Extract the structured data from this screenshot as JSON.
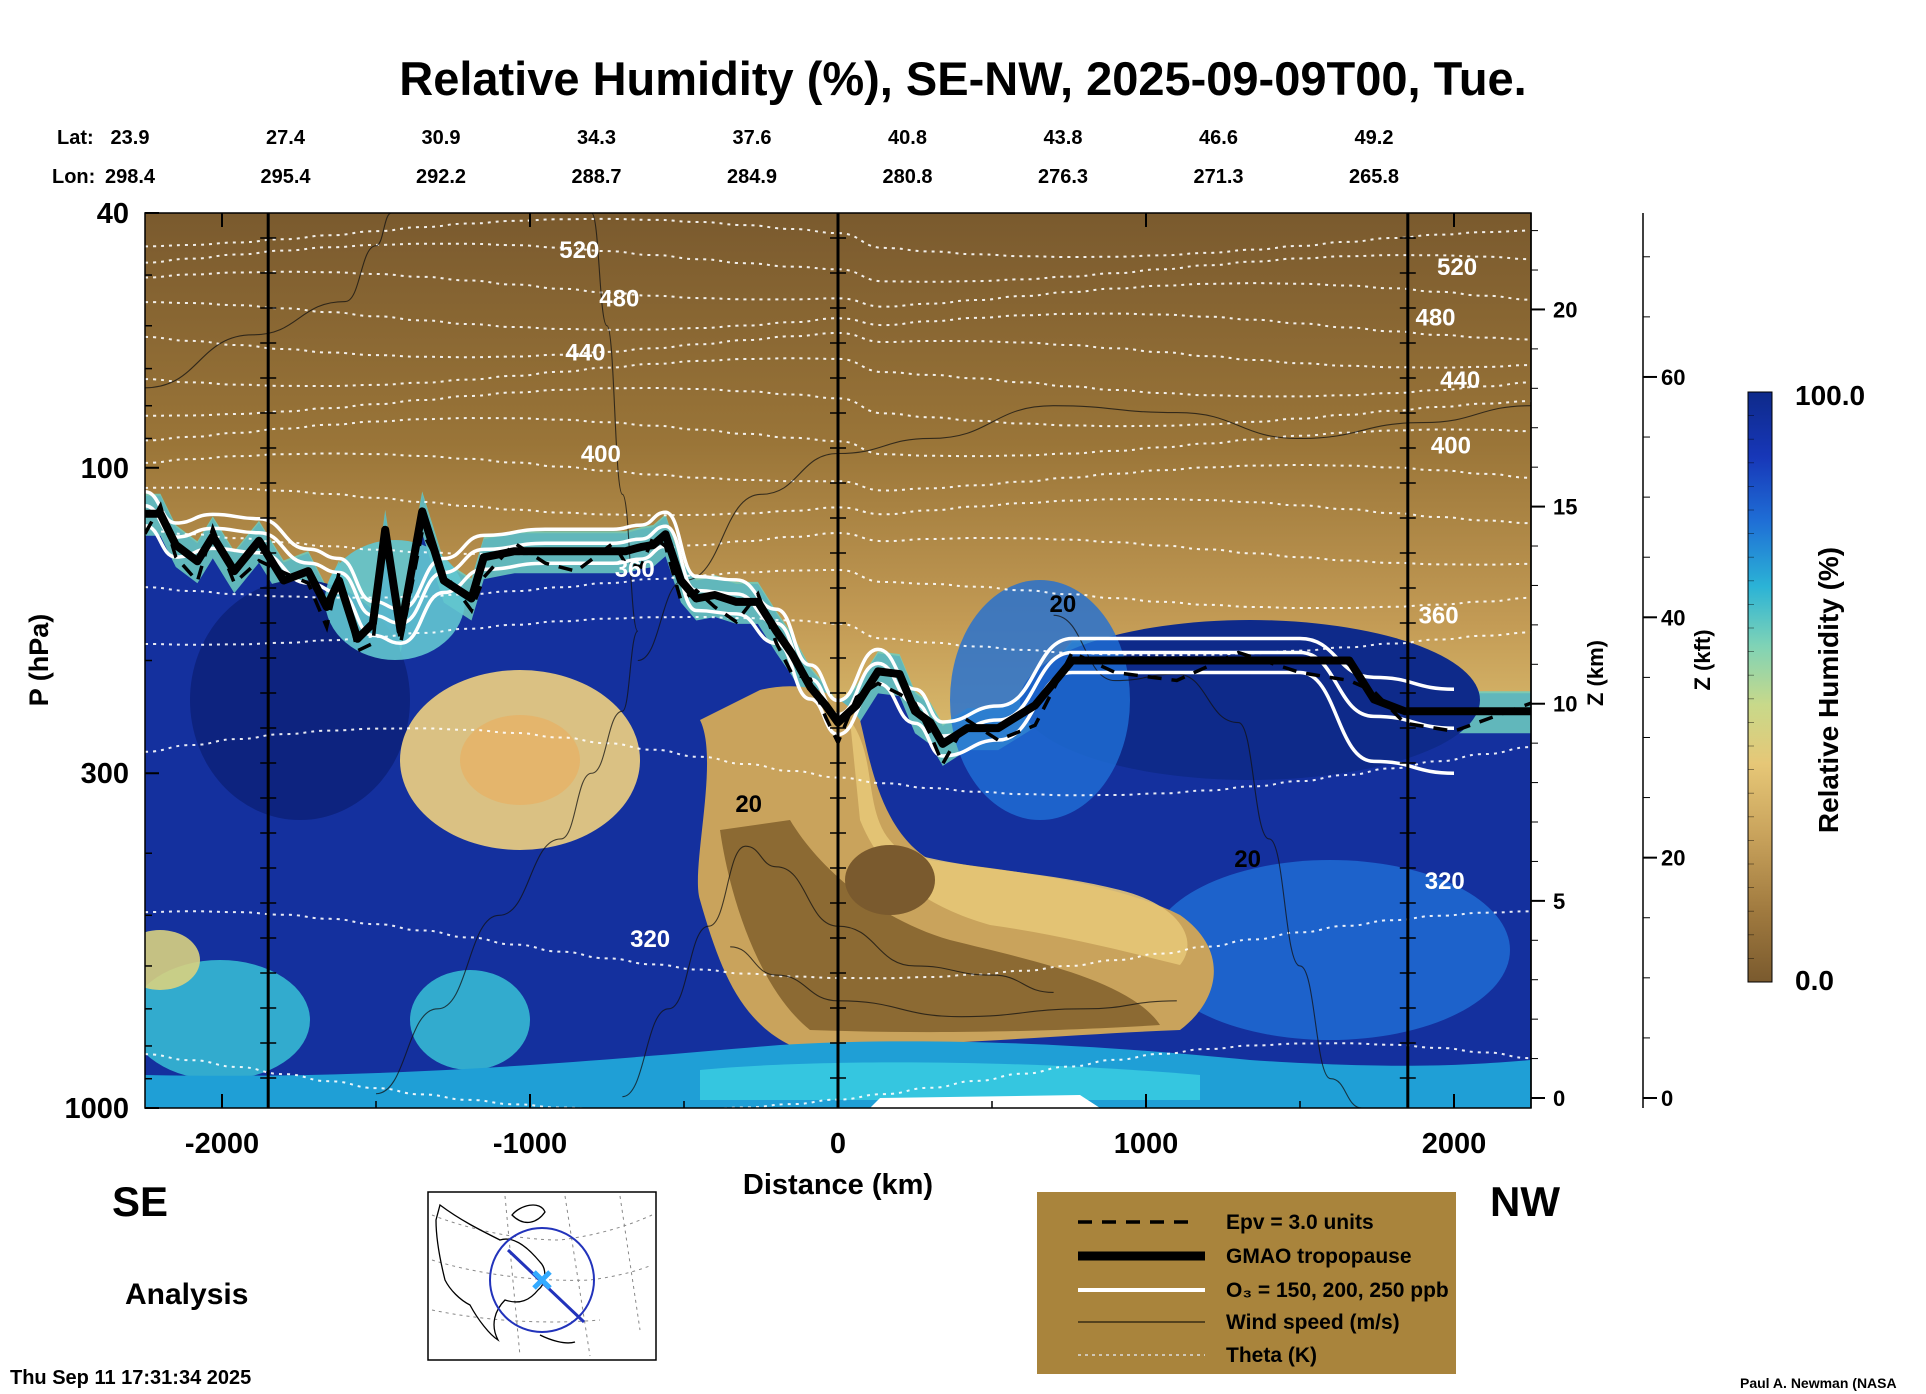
{
  "chart_data": {
    "type": "heatmap",
    "title": "Relative Humidity (%), SE-NW, 2025-09-09T00, Tue.",
    "xlabel": "Distance (km)",
    "ylabel": "P (hPa)",
    "right_label_z_km": "Z (km)",
    "right_label_z_kft": "Z (kft)",
    "xlim": [
      -2250,
      2250
    ],
    "ylim_hpa": [
      1000,
      40
    ],
    "x_ticks": [
      -2000,
      -1000,
      0,
      1000,
      2000
    ],
    "x_tick_labels": [
      "-2000",
      "-1000",
      "0",
      "1000",
      "2000"
    ],
    "y_ticks": [
      40,
      100,
      300,
      1000
    ],
    "y_tick_labels": [
      "40",
      "100",
      "300",
      "1000"
    ],
    "z_km_ticks": [
      0,
      5,
      10,
      15,
      20
    ],
    "z_km_labels": [
      "0",
      "5",
      "10",
      "15",
      "20"
    ],
    "z_kft_ticks": [
      0,
      20,
      40,
      60
    ],
    "z_kft_labels": [
      "0",
      "20",
      "40",
      "60"
    ],
    "lat_label": "Lat:",
    "lon_label": "Lon:",
    "lat_values": [
      "23.9",
      "27.4",
      "30.9",
      "34.3",
      "37.6",
      "40.8",
      "43.8",
      "46.6",
      "49.2"
    ],
    "lon_values": [
      "298.4",
      "295.4",
      "292.2",
      "288.7",
      "284.9",
      "280.8",
      "276.3",
      "271.3",
      "265.8"
    ],
    "lat_lon_distance_km": [
      -2250,
      -1750,
      -1250,
      -750,
      -250,
      250,
      750,
      1250,
      1750
    ],
    "vertical_markers_km": [
      -1850,
      0,
      1850
    ],
    "colorbar": {
      "label": "Relative Humidity (%)",
      "min": 0.0,
      "max": 100.0,
      "min_label": "0.0",
      "max_label": "100.0",
      "colors": [
        "#7a5a2e",
        "#a07a3f",
        "#c9a35c",
        "#e6c777",
        "#c8d98a",
        "#7fd3b6",
        "#2bb3d6",
        "#1f6fd6",
        "#1737b8",
        "#0e2a8a"
      ]
    },
    "theta_contours_K": [
      320,
      360,
      400,
      440,
      480,
      520
    ],
    "theta_labels": [
      {
        "text": "520",
        "x_km": -840,
        "p_hpa": 47
      },
      {
        "text": "480",
        "x_km": -710,
        "p_hpa": 56
      },
      {
        "text": "440",
        "x_km": -820,
        "p_hpa": 68
      },
      {
        "text": "400",
        "x_km": -770,
        "p_hpa": 98
      },
      {
        "text": "360",
        "x_km": -660,
        "p_hpa": 148
      },
      {
        "text": "320",
        "x_km": -610,
        "p_hpa": 560
      },
      {
        "text": "520",
        "x_km": 2010,
        "p_hpa": 50
      },
      {
        "text": "480",
        "x_km": 1940,
        "p_hpa": 60
      },
      {
        "text": "440",
        "x_km": 2020,
        "p_hpa": 75
      },
      {
        "text": "400",
        "x_km": 1990,
        "p_hpa": 95
      },
      {
        "text": "360",
        "x_km": 1950,
        "p_hpa": 175
      },
      {
        "text": "320",
        "x_km": 1970,
        "p_hpa": 455
      }
    ],
    "wind_labels": [
      {
        "text": "20",
        "x_km": 730,
        "p_hpa": 168
      },
      {
        "text": "20",
        "x_km": -290,
        "p_hpa": 345
      },
      {
        "text": "20",
        "x_km": 1330,
        "p_hpa": 420
      }
    ],
    "tropopause_hpa": [
      [
        -2250,
        118
      ],
      [
        -2200,
        118
      ],
      [
        -2150,
        132
      ],
      [
        -2080,
        140
      ],
      [
        -2030,
        128
      ],
      [
        -1960,
        145
      ],
      [
        -1880,
        130
      ],
      [
        -1800,
        150
      ],
      [
        -1720,
        145
      ],
      [
        -1660,
        165
      ],
      [
        -1620,
        150
      ],
      [
        -1560,
        185
      ],
      [
        -1510,
        175
      ],
      [
        -1470,
        125
      ],
      [
        -1420,
        180
      ],
      [
        -1350,
        117
      ],
      [
        -1280,
        150
      ],
      [
        -1190,
        160
      ],
      [
        -1150,
        138
      ],
      [
        -1050,
        135
      ],
      [
        -950,
        135
      ],
      [
        -850,
        135
      ],
      [
        -730,
        135
      ],
      [
        -690,
        135
      ],
      [
        -640,
        133
      ],
      [
        -600,
        132
      ],
      [
        -560,
        127
      ],
      [
        -510,
        150
      ],
      [
        -460,
        160
      ],
      [
        -400,
        158
      ],
      [
        -330,
        162
      ],
      [
        -260,
        162
      ],
      [
        -200,
        180
      ],
      [
        -150,
        195
      ],
      [
        -90,
        220
      ],
      [
        -40,
        235
      ],
      [
        0,
        250
      ],
      [
        60,
        235
      ],
      [
        130,
        208
      ],
      [
        200,
        210
      ],
      [
        250,
        240
      ],
      [
        300,
        250
      ],
      [
        340,
        270
      ],
      [
        420,
        255
      ],
      [
        520,
        255
      ],
      [
        640,
        235
      ],
      [
        760,
        200
      ],
      [
        900,
        200
      ],
      [
        1100,
        200
      ],
      [
        1300,
        200
      ],
      [
        1500,
        200
      ],
      [
        1660,
        200
      ],
      [
        1740,
        230
      ],
      [
        1840,
        240
      ],
      [
        2000,
        240
      ],
      [
        2250,
        240
      ]
    ],
    "wind_speed_units": "m/s",
    "theta_units": "K"
  },
  "header": {
    "title": "Relative Humidity (%), SE-NW, 2025-09-09T00, Tue."
  },
  "labels": {
    "se": "SE",
    "nw": "NW",
    "analysis": "Analysis",
    "timestamp": "Thu Sep 11 17:31:34 2025",
    "credit": "Paul A. Newman (NASA"
  },
  "legend": {
    "items": [
      {
        "label": "Epv = 3.0 units"
      },
      {
        "label": "GMAO tropopause"
      },
      {
        "label": "O₃ = 150, 200, 250 ppb"
      },
      {
        "label": "Wind speed (m/s)"
      },
      {
        "label": "Theta (K)"
      }
    ],
    "background": "#a9843c"
  }
}
